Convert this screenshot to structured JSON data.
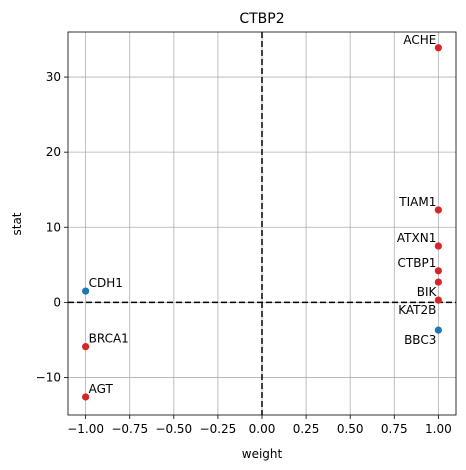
{
  "chart_data": {
    "type": "scatter",
    "title": "CTBP2",
    "xlabel": "weight",
    "ylabel": "stat",
    "xlim": [
      -1.1,
      1.1
    ],
    "ylim": [
      -15,
      36
    ],
    "xticks": [
      -1.0,
      -0.75,
      -0.5,
      -0.25,
      0.0,
      0.25,
      0.5,
      0.75,
      1.0
    ],
    "xtick_labels": [
      "−1.00",
      "−0.75",
      "−0.50",
      "−0.25",
      "0.00",
      "0.25",
      "0.50",
      "0.75",
      "1.00"
    ],
    "yticks": [
      -10,
      0,
      10,
      20,
      30
    ],
    "ytick_labels": [
      "−10",
      "0",
      "10",
      "20",
      "30"
    ],
    "grid": true,
    "reference_lines": {
      "x": 0,
      "y": 0,
      "style": "dashed",
      "color": "#000000"
    },
    "colors": {
      "positive": "#d62728",
      "negative": "#1f77b4"
    },
    "points": [
      {
        "label": "ACHE",
        "x": 1.0,
        "y": 33.9,
        "group": "positive",
        "anchor": "left"
      },
      {
        "label": "TIAM1",
        "x": 1.0,
        "y": 12.3,
        "group": "positive",
        "anchor": "left"
      },
      {
        "label": "ATXN1",
        "x": 1.0,
        "y": 7.5,
        "group": "positive",
        "anchor": "left"
      },
      {
        "label": "CTBP1",
        "x": 1.0,
        "y": 4.2,
        "group": "positive",
        "anchor": "left"
      },
      {
        "label": "BIK",
        "x": 1.0,
        "y": 2.7,
        "group": "positive",
        "anchor": "left-below"
      },
      {
        "label": "KAT2B",
        "x": 1.0,
        "y": 0.3,
        "group": "positive",
        "anchor": "left-below"
      },
      {
        "label": "BBC3",
        "x": 1.0,
        "y": -3.7,
        "group": "negative",
        "anchor": "left-below"
      },
      {
        "label": "CDH1",
        "x": -1.0,
        "y": 1.5,
        "group": "negative",
        "anchor": "right"
      },
      {
        "label": "BRCA1",
        "x": -1.0,
        "y": -5.9,
        "group": "positive",
        "anchor": "right"
      },
      {
        "label": "AGT",
        "x": -1.0,
        "y": -12.6,
        "group": "positive",
        "anchor": "right"
      }
    ]
  }
}
